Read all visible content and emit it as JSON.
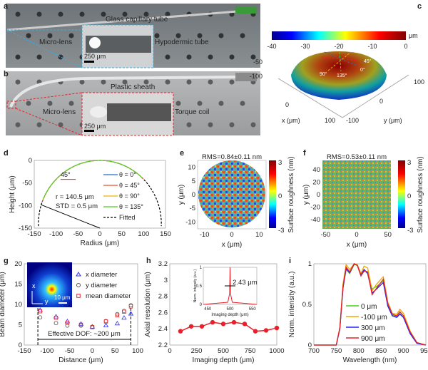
{
  "panel_labels": {
    "a": "a",
    "b": "b",
    "c": "c",
    "d": "d",
    "e": "e",
    "f": "f",
    "g": "g",
    "h": "h",
    "i": "i"
  },
  "photo_a": {
    "labels": [
      "Glass capillary tube",
      "Micro-lens",
      "Hypodermic tube"
    ],
    "scale": "250 μm"
  },
  "photo_b": {
    "labels": [
      "Plastic sheath",
      "Micro-lens",
      "Torque coil"
    ],
    "scale": "250 μm"
  },
  "colors": {
    "red": "#e8202a",
    "blue": "#2020ff",
    "green": "#4bd018",
    "orange": "#f0a800",
    "line_blue": "#1f6fd0"
  },
  "chart_data": [
    {
      "panel": "c",
      "type": "surface",
      "colorbar_ticks": [
        "-40",
        "-30",
        "-20",
        "-10",
        "0"
      ],
      "colorbar_unit": "μm",
      "xlabel": "x (μm)",
      "ylabel": "y (μm)",
      "zlabel": "z (μm)",
      "x_ticks": [
        "0",
        "100"
      ],
      "y_ticks": [
        "-100",
        "0",
        "100"
      ],
      "z_ticks": [
        "0",
        "-50",
        "-100"
      ],
      "angle_labels": [
        "45°",
        "0°",
        "90°",
        "135°"
      ]
    },
    {
      "panel": "d",
      "type": "line",
      "xlabel": "Radius (μm)",
      "ylabel": "Height (μm)",
      "xlim": [
        -150,
        150
      ],
      "ylim": [
        -150,
        0
      ],
      "x_ticks": [
        "-150",
        "-100",
        "-50",
        "0",
        "50",
        "100",
        "150"
      ],
      "y_ticks": [
        "0",
        "-50",
        "-100",
        "-150"
      ],
      "series": [
        {
          "name": "θ = 0°"
        },
        {
          "name": "θ = 45°"
        },
        {
          "name": "θ = 90°"
        },
        {
          "name": "θ = 135°"
        },
        {
          "name": "Fitted"
        }
      ],
      "fit_radius": 140.5,
      "annotations": [
        "r = 140.5 μm",
        "STD = 0.5 μm",
        "45°"
      ]
    },
    {
      "panel": "e",
      "type": "heatmap",
      "title": "RMS=0.84±0.11 nm",
      "xlabel": "x (μm)",
      "ylabel": "y (μm)",
      "x_ticks": [
        "-10",
        "0",
        "10"
      ],
      "y_ticks": [
        "10",
        "5",
        "0",
        "-5",
        "-10"
      ],
      "colorbar_label": "Surface roughness (nm)",
      "colorbar_ticks": [
        "3",
        "0",
        "-3"
      ]
    },
    {
      "panel": "f",
      "type": "heatmap",
      "title": "RMS=0.53±0.11 nm",
      "xlabel": "x (μm)",
      "ylabel": "y (μm)",
      "x_ticks": [
        "-50",
        "0",
        "50"
      ],
      "y_ticks": [
        "40",
        "20",
        "0",
        "-20",
        "-40"
      ],
      "colorbar_label": "Surface roughness (nm)",
      "colorbar_ticks": [
        "3",
        "0",
        "-3"
      ]
    },
    {
      "panel": "g",
      "type": "scatter",
      "xlabel": "Distance (μm)",
      "ylabel": "Beam diameter (μm)",
      "xlim": [
        -150,
        100
      ],
      "ylim": [
        0,
        20
      ],
      "x_ticks": [
        "-150",
        "-100",
        "-50",
        "0",
        "50",
        "100"
      ],
      "y_ticks": [
        "20",
        "15",
        "10",
        "5",
        "0"
      ],
      "x": [
        -115,
        -80,
        -55,
        -25,
        0,
        30,
        55,
        70,
        85
      ],
      "series": [
        {
          "name": "x diameter",
          "values": [
            8.6,
            7.0,
            5.8,
            5.2,
            4.5,
            4.8,
            5.3,
            6.7,
            7.7
          ]
        },
        {
          "name": "y diameter",
          "values": [
            6.8,
            5.4,
            4.8,
            4.8,
            4.5,
            5.9,
            7.6,
            8.4,
            9.8
          ]
        },
        {
          "name": "mean diameter",
          "values": [
            8.3,
            6.7,
            5.5,
            5.0,
            4.4,
            5.8,
            7.3,
            8.2,
            9.5
          ]
        }
      ],
      "annotations": [
        "Effective DOF: ~200 μm"
      ],
      "inset": {
        "axis_x": "x",
        "axis_y": "y",
        "scale": "10 μm"
      }
    },
    {
      "panel": "h",
      "type": "line",
      "xlabel": "Imaging depth (μm)",
      "ylabel": "Axial resolution (μm)",
      "xlim": [
        0,
        1000
      ],
      "ylim": [
        2.2,
        3.2
      ],
      "x_ticks": [
        "0",
        "250",
        "500",
        "750",
        "1000"
      ],
      "y_ticks": [
        "3.2",
        "3",
        "2.8",
        "2.6",
        "2.4",
        "2.2"
      ],
      "x": [
        100,
        200,
        300,
        400,
        500,
        600,
        700,
        800,
        900,
        1000
      ],
      "values": [
        2.37,
        2.43,
        2.43,
        2.48,
        2.46,
        2.48,
        2.46,
        2.37,
        2.38,
        2.41
      ],
      "inset": {
        "xlabel": "Imaging depth (μm)",
        "ylabel": "Norm. intensity (a.u.)",
        "x_ticks": [
          "450",
          "500",
          "550"
        ],
        "y_ticks": [
          "1",
          "0.5",
          "0"
        ],
        "annotation": "2.43 μm"
      }
    },
    {
      "panel": "i",
      "type": "line",
      "xlabel": "Wavelength (nm)",
      "ylabel": "Norm. intensity (a.u.)",
      "xlim": [
        700,
        950
      ],
      "ylim": [
        0,
        1
      ],
      "x_ticks": [
        "700",
        "750",
        "800",
        "850",
        "900",
        "950"
      ],
      "y_ticks": [
        "1",
        "0.5",
        "0"
      ],
      "x": [
        700,
        750,
        758,
        765,
        772,
        780,
        790,
        797,
        805,
        812,
        820,
        830,
        840,
        855,
        865,
        875,
        885,
        892,
        900,
        915,
        930,
        950
      ],
      "series": [
        {
          "name": "0 μm",
          "values": [
            0,
            0,
            0.2,
            0.7,
            0.93,
            0.88,
            0.99,
            0.98,
            0.87,
            0.92,
            0.9,
            0.69,
            0.72,
            0.79,
            0.5,
            0.37,
            0.35,
            0.39,
            0.34,
            0.15,
            0.03,
            0
          ]
        },
        {
          "name": "-100 μm",
          "values": [
            0,
            0,
            0.22,
            0.75,
            0.99,
            0.93,
            1.0,
            0.99,
            0.88,
            0.97,
            0.95,
            0.67,
            0.75,
            0.84,
            0.53,
            0.39,
            0.38,
            0.44,
            0.39,
            0.17,
            0.03,
            0
          ]
        },
        {
          "name": "300 μm",
          "values": [
            0,
            0,
            0.2,
            0.7,
            0.94,
            0.89,
            1.0,
            0.98,
            0.86,
            0.93,
            0.88,
            0.64,
            0.69,
            0.77,
            0.48,
            0.36,
            0.34,
            0.38,
            0.34,
            0.14,
            0.02,
            0
          ]
        },
        {
          "name": "900 μm",
          "values": [
            0,
            0,
            0.21,
            0.72,
            0.96,
            0.9,
            1.0,
            0.98,
            0.85,
            0.91,
            0.9,
            0.62,
            0.7,
            0.81,
            0.51,
            0.38,
            0.36,
            0.41,
            0.36,
            0.16,
            0.03,
            0
          ]
        }
      ]
    }
  ]
}
